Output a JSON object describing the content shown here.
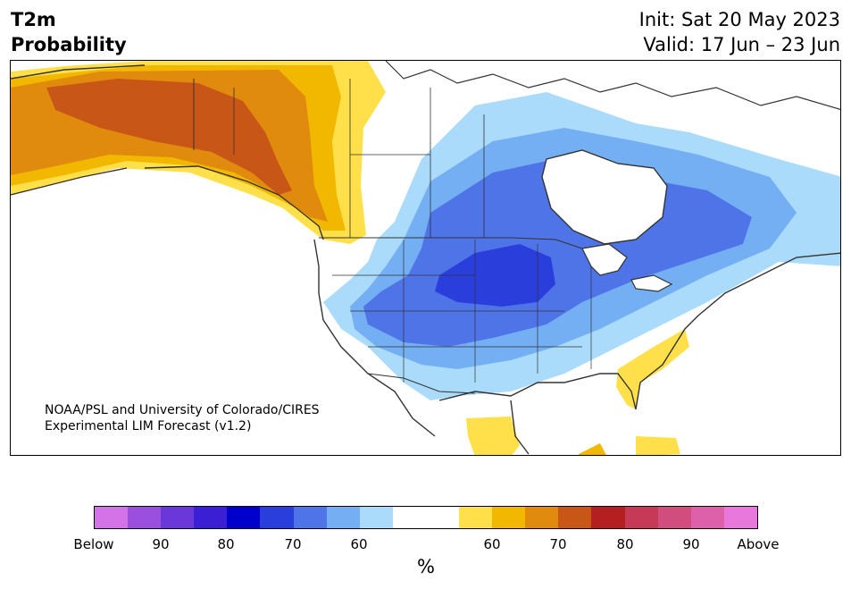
{
  "header": {
    "variable": "T2m",
    "product": "Probability",
    "init": "Init: Sat 20 May 2023",
    "valid": "Valid: 17 Jun – 23 Jun"
  },
  "credit": {
    "line1": "NOAA/PSL and University of Colorado/CIRES",
    "line2": "Experimental LIM Forecast (v1.2)"
  },
  "colorbar": {
    "unit": "%",
    "segments": [
      {
        "range": "below",
        "color": "#d473e8"
      },
      {
        "range": "below",
        "color": "#9b4fdf"
      },
      {
        "range": "below",
        "color": "#6a37d8"
      },
      {
        "range": "below",
        "color": "#3a1fd4"
      },
      {
        "range": "below",
        "color": "#0000cc"
      },
      {
        "range": "below",
        "color": "#2a3edb"
      },
      {
        "range": "below",
        "color": "#4f74e8"
      },
      {
        "range": "below",
        "color": "#73aff2"
      },
      {
        "range": "below",
        "color": "#aadbfb"
      },
      {
        "range": "neutral",
        "color": "#ffffff"
      },
      {
        "range": "neutral",
        "color": "#ffffff"
      },
      {
        "range": "above",
        "color": "#ffe04a"
      },
      {
        "range": "above",
        "color": "#f2b800"
      },
      {
        "range": "above",
        "color": "#e08a0e"
      },
      {
        "range": "above",
        "color": "#c85616"
      },
      {
        "range": "above",
        "color": "#b42022"
      },
      {
        "range": "above",
        "color": "#c63a58"
      },
      {
        "range": "above",
        "color": "#d14d7d"
      },
      {
        "range": "above",
        "color": "#dd60aa"
      },
      {
        "range": "above",
        "color": "#e878dc"
      }
    ],
    "tick_labels": [
      "Below",
      "90",
      "80",
      "70",
      "60",
      "60",
      "70",
      "80",
      "90",
      "Above"
    ]
  },
  "map": {
    "region": "North America",
    "categories": [
      {
        "name": "below-normal probability",
        "colors": [
          "#aadbfb",
          "#73aff2",
          "#4f74e8",
          "#2a3edb"
        ]
      },
      {
        "name": "above-normal probability",
        "colors": [
          "#ffe04a",
          "#f2b800",
          "#e08a0e",
          "#c85616"
        ]
      }
    ]
  }
}
